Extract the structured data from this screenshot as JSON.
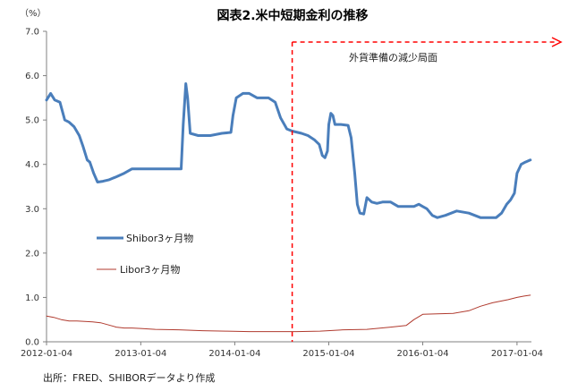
{
  "chart_data": {
    "type": "line",
    "title": "図表2.米中短期金利の推移",
    "y_unit_label": "（%）",
    "ylim": [
      0,
      7
    ],
    "y_ticks": [
      "0.0",
      "1.0",
      "2.0",
      "3.0",
      "4.0",
      "5.0",
      "6.0",
      "7.0"
    ],
    "x_ticks": [
      {
        "label": "2012-01-04",
        "date": "2012-01-04"
      },
      {
        "label": "2013-01-04",
        "date": "2013-01-04"
      },
      {
        "label": "2014-01-04",
        "date": "2014-01-04"
      },
      {
        "label": "2015-01-04",
        "date": "2015-01-04"
      },
      {
        "label": "2016-01-04",
        "date": "2016-01-04"
      },
      {
        "label": "2017-01-04",
        "date": "2017-01-04"
      }
    ],
    "xlim": [
      "2012-01-04",
      "2017-03-01"
    ],
    "grid": false,
    "series": [
      {
        "name": "Shibor3ヶ月物",
        "color": "#4a7ebb",
        "points": [
          [
            "2012-01-04",
            5.45
          ],
          [
            "2012-01-20",
            5.6
          ],
          [
            "2012-02-05",
            5.45
          ],
          [
            "2012-02-25",
            5.4
          ],
          [
            "2012-03-15",
            5.0
          ],
          [
            "2012-04-01",
            4.95
          ],
          [
            "2012-04-20",
            4.85
          ],
          [
            "2012-05-10",
            4.65
          ],
          [
            "2012-05-25",
            4.4
          ],
          [
            "2012-06-10",
            4.1
          ],
          [
            "2012-06-20",
            4.05
          ],
          [
            "2012-07-05",
            3.8
          ],
          [
            "2012-07-20",
            3.6
          ],
          [
            "2012-08-10",
            3.62
          ],
          [
            "2012-09-01",
            3.65
          ],
          [
            "2012-10-01",
            3.72
          ],
          [
            "2012-11-01",
            3.8
          ],
          [
            "2012-12-01",
            3.9
          ],
          [
            "2013-01-04",
            3.9
          ],
          [
            "2013-03-01",
            3.9
          ],
          [
            "2013-05-01",
            3.9
          ],
          [
            "2013-06-10",
            3.9
          ],
          [
            "2013-06-18",
            4.9
          ],
          [
            "2013-06-28",
            5.82
          ],
          [
            "2013-07-05",
            5.5
          ],
          [
            "2013-07-15",
            4.7
          ],
          [
            "2013-08-15",
            4.65
          ],
          [
            "2013-10-01",
            4.65
          ],
          [
            "2013-11-15",
            4.7
          ],
          [
            "2013-12-20",
            4.72
          ],
          [
            "2013-12-28",
            5.1
          ],
          [
            "2014-01-10",
            5.5
          ],
          [
            "2014-02-05",
            5.6
          ],
          [
            "2014-03-01",
            5.6
          ],
          [
            "2014-04-01",
            5.5
          ],
          [
            "2014-05-15",
            5.5
          ],
          [
            "2014-06-10",
            5.4
          ],
          [
            "2014-07-01",
            5.05
          ],
          [
            "2014-07-25",
            4.8
          ],
          [
            "2014-08-15",
            4.75
          ],
          [
            "2014-09-20",
            4.7
          ],
          [
            "2014-10-15",
            4.65
          ],
          [
            "2014-11-10",
            4.55
          ],
          [
            "2014-11-28",
            4.45
          ],
          [
            "2014-12-10",
            4.2
          ],
          [
            "2014-12-20",
            4.15
          ],
          [
            "2014-12-30",
            4.3
          ],
          [
            "2015-01-04",
            4.9
          ],
          [
            "2015-01-12",
            5.15
          ],
          [
            "2015-01-20",
            5.1
          ],
          [
            "2015-01-28",
            4.9
          ],
          [
            "2015-02-20",
            4.9
          ],
          [
            "2015-03-20",
            4.88
          ],
          [
            "2015-04-01",
            4.6
          ],
          [
            "2015-04-15",
            3.8
          ],
          [
            "2015-04-25",
            3.1
          ],
          [
            "2015-05-05",
            2.9
          ],
          [
            "2015-05-20",
            2.88
          ],
          [
            "2015-06-01",
            3.25
          ],
          [
            "2015-06-20",
            3.15
          ],
          [
            "2015-07-10",
            3.12
          ],
          [
            "2015-08-01",
            3.15
          ],
          [
            "2015-09-01",
            3.15
          ],
          [
            "2015-10-01",
            3.05
          ],
          [
            "2015-11-01",
            3.05
          ],
          [
            "2015-12-01",
            3.05
          ],
          [
            "2015-12-20",
            3.1
          ],
          [
            "2016-01-04",
            3.05
          ],
          [
            "2016-01-20",
            3.0
          ],
          [
            "2016-02-10",
            2.85
          ],
          [
            "2016-03-01",
            2.8
          ],
          [
            "2016-04-01",
            2.85
          ],
          [
            "2016-05-15",
            2.95
          ],
          [
            "2016-07-01",
            2.9
          ],
          [
            "2016-08-15",
            2.8
          ],
          [
            "2016-09-15",
            2.8
          ],
          [
            "2016-10-15",
            2.8
          ],
          [
            "2016-11-05",
            2.9
          ],
          [
            "2016-11-25",
            3.1
          ],
          [
            "2016-12-10",
            3.2
          ],
          [
            "2016-12-25",
            3.35
          ],
          [
            "2017-01-04",
            3.8
          ],
          [
            "2017-01-20",
            4.0
          ],
          [
            "2017-02-05",
            4.05
          ],
          [
            "2017-02-25",
            4.1
          ]
        ]
      },
      {
        "name": "Libor3ヶ月物",
        "color": "#b03a2e",
        "points": [
          [
            "2012-01-04",
            0.58
          ],
          [
            "2012-02-01",
            0.55
          ],
          [
            "2012-03-01",
            0.5
          ],
          [
            "2012-04-01",
            0.47
          ],
          [
            "2012-05-01",
            0.47
          ],
          [
            "2012-06-01",
            0.46
          ],
          [
            "2012-07-01",
            0.45
          ],
          [
            "2012-08-01",
            0.43
          ],
          [
            "2012-09-01",
            0.38
          ],
          [
            "2012-10-01",
            0.33
          ],
          [
            "2012-11-01",
            0.31
          ],
          [
            "2012-12-01",
            0.31
          ],
          [
            "2013-01-04",
            0.3
          ],
          [
            "2013-03-01",
            0.28
          ],
          [
            "2013-06-01",
            0.27
          ],
          [
            "2013-09-01",
            0.25
          ],
          [
            "2013-12-01",
            0.24
          ],
          [
            "2014-03-01",
            0.23
          ],
          [
            "2014-06-01",
            0.23
          ],
          [
            "2014-09-01",
            0.23
          ],
          [
            "2014-12-01",
            0.24
          ],
          [
            "2015-03-01",
            0.27
          ],
          [
            "2015-06-01",
            0.28
          ],
          [
            "2015-09-01",
            0.33
          ],
          [
            "2015-11-01",
            0.37
          ],
          [
            "2015-12-01",
            0.5
          ],
          [
            "2016-01-04",
            0.62
          ],
          [
            "2016-03-01",
            0.63
          ],
          [
            "2016-05-01",
            0.64
          ],
          [
            "2016-07-01",
            0.7
          ],
          [
            "2016-08-15",
            0.8
          ],
          [
            "2016-10-01",
            0.88
          ],
          [
            "2016-12-01",
            0.95
          ],
          [
            "2017-01-04",
            1.0
          ],
          [
            "2017-02-01",
            1.03
          ],
          [
            "2017-02-25",
            1.05
          ]
        ]
      }
    ],
    "annotation": {
      "text": "外貨準備の減少局面",
      "start_date": "2014-08-15",
      "color": "#ff0000",
      "line_style": "dashed"
    },
    "source": "出所：FRED、SHIBORデータより作成"
  }
}
